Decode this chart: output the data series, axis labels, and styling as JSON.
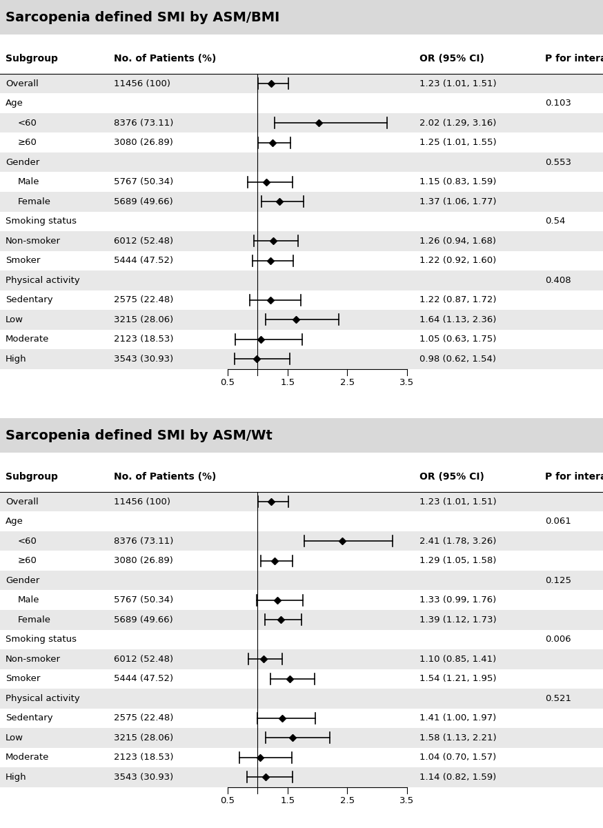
{
  "panel1": {
    "title": "Sarcopenia defined SMI by ASM/BMI",
    "rows": [
      {
        "label": "Overall",
        "indent": false,
        "patients": "11456 (100)",
        "or": 1.23,
        "ci_lo": 1.01,
        "ci_hi": 1.51,
        "or_text": "1.23 (1.01, 1.51)",
        "p_text": "",
        "is_header": false,
        "bg": "gray"
      },
      {
        "label": "Age",
        "indent": false,
        "patients": "",
        "or": null,
        "ci_lo": null,
        "ci_hi": null,
        "or_text": "",
        "p_text": "0.103",
        "is_header": true,
        "bg": "white"
      },
      {
        "label": "  <60",
        "indent": true,
        "patients": "8376 (73.11)",
        "or": 2.02,
        "ci_lo": 1.29,
        "ci_hi": 3.16,
        "or_text": "2.02 (1.29, 3.16)",
        "p_text": "",
        "is_header": false,
        "bg": "gray"
      },
      {
        "label": "  ≥60",
        "indent": true,
        "patients": "3080 (26.89)",
        "or": 1.25,
        "ci_lo": 1.01,
        "ci_hi": 1.55,
        "or_text": "1.25 (1.01, 1.55)",
        "p_text": "",
        "is_header": false,
        "bg": "white"
      },
      {
        "label": "Gender",
        "indent": false,
        "patients": "",
        "or": null,
        "ci_lo": null,
        "ci_hi": null,
        "or_text": "",
        "p_text": "0.553",
        "is_header": true,
        "bg": "gray"
      },
      {
        "label": "  Male",
        "indent": true,
        "patients": "5767 (50.34)",
        "or": 1.15,
        "ci_lo": 0.83,
        "ci_hi": 1.59,
        "or_text": "1.15 (0.83, 1.59)",
        "p_text": "",
        "is_header": false,
        "bg": "white"
      },
      {
        "label": "  Female",
        "indent": true,
        "patients": "5689 (49.66)",
        "or": 1.37,
        "ci_lo": 1.06,
        "ci_hi": 1.77,
        "or_text": "1.37 (1.06, 1.77)",
        "p_text": "",
        "is_header": false,
        "bg": "gray"
      },
      {
        "label": "Smoking status",
        "indent": false,
        "patients": "",
        "or": null,
        "ci_lo": null,
        "ci_hi": null,
        "or_text": "",
        "p_text": "0.54",
        "is_header": true,
        "bg": "white"
      },
      {
        "label": "Non-smoker",
        "indent": false,
        "patients": "6012 (52.48)",
        "or": 1.26,
        "ci_lo": 0.94,
        "ci_hi": 1.68,
        "or_text": "1.26 (0.94, 1.68)",
        "p_text": "",
        "is_header": false,
        "bg": "gray"
      },
      {
        "label": "Smoker",
        "indent": false,
        "patients": "5444 (47.52)",
        "or": 1.22,
        "ci_lo": 0.92,
        "ci_hi": 1.6,
        "or_text": "1.22 (0.92, 1.60)",
        "p_text": "",
        "is_header": false,
        "bg": "white"
      },
      {
        "label": "Physical activity",
        "indent": false,
        "patients": "",
        "or": null,
        "ci_lo": null,
        "ci_hi": null,
        "or_text": "",
        "p_text": "0.408",
        "is_header": true,
        "bg": "gray"
      },
      {
        "label": "Sedentary",
        "indent": false,
        "patients": "2575 (22.48)",
        "or": 1.22,
        "ci_lo": 0.87,
        "ci_hi": 1.72,
        "or_text": "1.22 (0.87, 1.72)",
        "p_text": "",
        "is_header": false,
        "bg": "white"
      },
      {
        "label": "Low",
        "indent": false,
        "patients": "3215 (28.06)",
        "or": 1.64,
        "ci_lo": 1.13,
        "ci_hi": 2.36,
        "or_text": "1.64 (1.13, 2.36)",
        "p_text": "",
        "is_header": false,
        "bg": "gray"
      },
      {
        "label": "Moderate",
        "indent": false,
        "patients": "2123 (18.53)",
        "or": 1.05,
        "ci_lo": 0.63,
        "ci_hi": 1.75,
        "or_text": "1.05 (0.63, 1.75)",
        "p_text": "",
        "is_header": false,
        "bg": "white"
      },
      {
        "label": "High",
        "indent": false,
        "patients": "3543 (30.93)",
        "or": 0.98,
        "ci_lo": 0.62,
        "ci_hi": 1.54,
        "or_text": "0.98 (0.62, 1.54)",
        "p_text": "",
        "is_header": false,
        "bg": "gray"
      }
    ]
  },
  "panel2": {
    "title": "Sarcopenia defined SMI by ASM/Wt",
    "rows": [
      {
        "label": "Overall",
        "indent": false,
        "patients": "11456 (100)",
        "or": 1.23,
        "ci_lo": 1.01,
        "ci_hi": 1.51,
        "or_text": "1.23 (1.01, 1.51)",
        "p_text": "",
        "is_header": false,
        "bg": "gray"
      },
      {
        "label": "Age",
        "indent": false,
        "patients": "",
        "or": null,
        "ci_lo": null,
        "ci_hi": null,
        "or_text": "",
        "p_text": "0.061",
        "is_header": true,
        "bg": "white"
      },
      {
        "label": "  <60",
        "indent": true,
        "patients": "8376 (73.11)",
        "or": 2.41,
        "ci_lo": 1.78,
        "ci_hi": 3.26,
        "or_text": "2.41 (1.78, 3.26)",
        "p_text": "",
        "is_header": false,
        "bg": "gray"
      },
      {
        "label": "  ≥60",
        "indent": true,
        "patients": "3080 (26.89)",
        "or": 1.29,
        "ci_lo": 1.05,
        "ci_hi": 1.58,
        "or_text": "1.29 (1.05, 1.58)",
        "p_text": "",
        "is_header": false,
        "bg": "white"
      },
      {
        "label": "Gender",
        "indent": false,
        "patients": "",
        "or": null,
        "ci_lo": null,
        "ci_hi": null,
        "or_text": "",
        "p_text": "0.125",
        "is_header": true,
        "bg": "gray"
      },
      {
        "label": "  Male",
        "indent": true,
        "patients": "5767 (50.34)",
        "or": 1.33,
        "ci_lo": 0.99,
        "ci_hi": 1.76,
        "or_text": "1.33 (0.99, 1.76)",
        "p_text": "",
        "is_header": false,
        "bg": "white"
      },
      {
        "label": "  Female",
        "indent": true,
        "patients": "5689 (49.66)",
        "or": 1.39,
        "ci_lo": 1.12,
        "ci_hi": 1.73,
        "or_text": "1.39 (1.12, 1.73)",
        "p_text": "",
        "is_header": false,
        "bg": "gray"
      },
      {
        "label": "Smoking status",
        "indent": false,
        "patients": "",
        "or": null,
        "ci_lo": null,
        "ci_hi": null,
        "or_text": "",
        "p_text": "0.006",
        "is_header": true,
        "bg": "white"
      },
      {
        "label": "Non-smoker",
        "indent": false,
        "patients": "6012 (52.48)",
        "or": 1.1,
        "ci_lo": 0.85,
        "ci_hi": 1.41,
        "or_text": "1.10 (0.85, 1.41)",
        "p_text": "",
        "is_header": false,
        "bg": "gray"
      },
      {
        "label": "Smoker",
        "indent": false,
        "patients": "5444 (47.52)",
        "or": 1.54,
        "ci_lo": 1.21,
        "ci_hi": 1.95,
        "or_text": "1.54 (1.21, 1.95)",
        "p_text": "",
        "is_header": false,
        "bg": "white"
      },
      {
        "label": "Physical activity",
        "indent": false,
        "patients": "",
        "or": null,
        "ci_lo": null,
        "ci_hi": null,
        "or_text": "",
        "p_text": "0.521",
        "is_header": true,
        "bg": "gray"
      },
      {
        "label": "Sedentary",
        "indent": false,
        "patients": "2575 (22.48)",
        "or": 1.41,
        "ci_lo": 1.0,
        "ci_hi": 1.97,
        "or_text": "1.41 (1.00, 1.97)",
        "p_text": "",
        "is_header": false,
        "bg": "white"
      },
      {
        "label": "Low",
        "indent": false,
        "patients": "3215 (28.06)",
        "or": 1.58,
        "ci_lo": 1.13,
        "ci_hi": 2.21,
        "or_text": "1.58 (1.13, 2.21)",
        "p_text": "",
        "is_header": false,
        "bg": "gray"
      },
      {
        "label": "Moderate",
        "indent": false,
        "patients": "2123 (18.53)",
        "or": 1.04,
        "ci_lo": 0.7,
        "ci_hi": 1.57,
        "or_text": "1.04 (0.70, 1.57)",
        "p_text": "",
        "is_header": false,
        "bg": "white"
      },
      {
        "label": "High",
        "indent": false,
        "patients": "3543 (30.93)",
        "or": 1.14,
        "ci_lo": 0.82,
        "ci_hi": 1.59,
        "or_text": "1.14 (0.82, 1.59)",
        "p_text": "",
        "is_header": false,
        "bg": "gray"
      }
    ]
  },
  "x_min": 0.5,
  "x_max": 3.5,
  "x_ticks": [
    0.5,
    1.5,
    2.5,
    3.5
  ],
  "ref_line": 1.0,
  "title_bg": "#d9d9d9",
  "gray_bg": "#e8e8e8",
  "white_bg": "#ffffff",
  "panel_bg": "#efefef",
  "font_size": 9.5,
  "title_font_size": 14,
  "header_font_size": 10
}
